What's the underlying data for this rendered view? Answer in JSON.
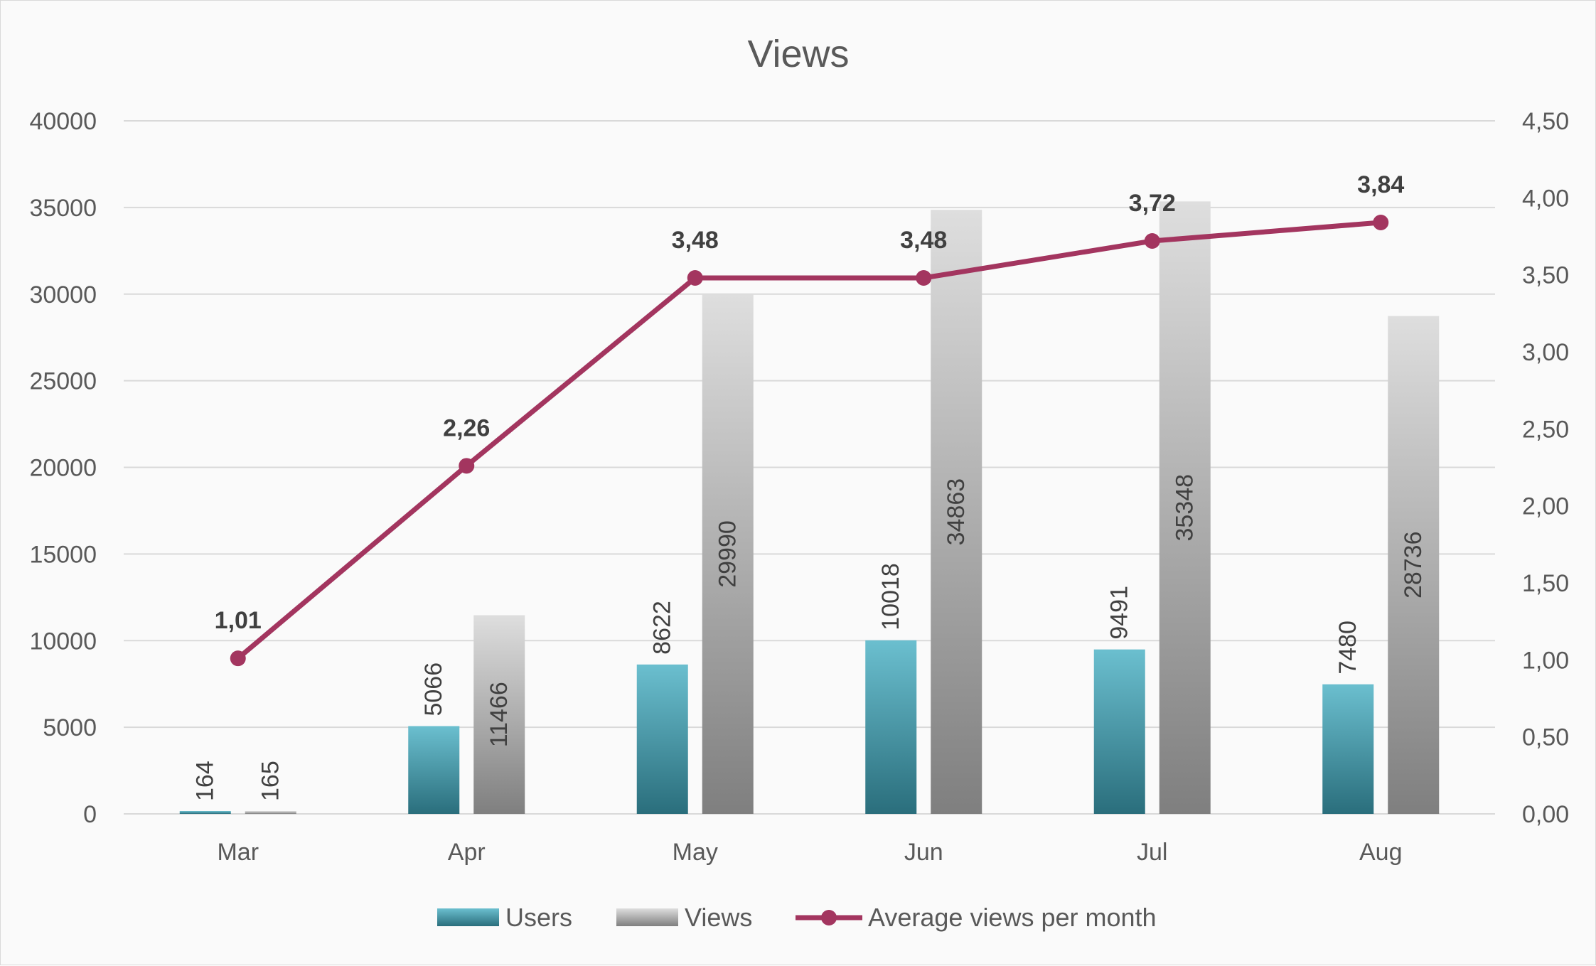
{
  "chart_data": {
    "type": "bar",
    "title": "Views",
    "categories": [
      "Mar",
      "Apr",
      "May",
      "Jun",
      "Jul",
      "Aug"
    ],
    "series": [
      {
        "name": "Users",
        "type": "bar",
        "axis": "left",
        "values": [
          164,
          5066,
          8622,
          10018,
          9491,
          7480
        ],
        "labels": [
          "164",
          "5066",
          "8622",
          "10018",
          "9491",
          "7480"
        ],
        "color_top": "#6bbfcf",
        "color_bottom": "#2a6e7c"
      },
      {
        "name": "Views",
        "type": "bar",
        "axis": "left",
        "values": [
          165,
          11466,
          29990,
          34863,
          35348,
          28736
        ],
        "labels": [
          "165",
          "11466",
          "29990",
          "34863",
          "35348",
          "28736"
        ],
        "color_top": "#dedede",
        "color_bottom": "#7f7f7f"
      },
      {
        "name": "Average views per month",
        "type": "line",
        "axis": "right",
        "values": [
          1.01,
          2.26,
          3.48,
          3.48,
          3.72,
          3.84
        ],
        "labels": [
          "1,01",
          "2,26",
          "3,48",
          "3,48",
          "3,72",
          "3,84"
        ],
        "color": "#a3355f"
      }
    ],
    "y_left": {
      "range": [
        0,
        40000
      ],
      "ticks": [
        0,
        5000,
        10000,
        15000,
        20000,
        25000,
        30000,
        35000,
        40000
      ],
      "tick_labels": [
        "0",
        "5000",
        "10000",
        "15000",
        "20000",
        "25000",
        "30000",
        "35000",
        "40000"
      ]
    },
    "y_right": {
      "range": [
        0,
        4.5
      ],
      "ticks": [
        0,
        0.5,
        1,
        1.5,
        2,
        2.5,
        3,
        3.5,
        4,
        4.5
      ],
      "tick_labels": [
        "0,00",
        "0,50",
        "1,00",
        "1,50",
        "2,00",
        "2,50",
        "3,00",
        "3,50",
        "4,00",
        "4,50"
      ]
    },
    "grid": true,
    "legend_position": "bottom",
    "colors": {
      "gridline": "#d9d9d9",
      "axis_text": "#595959",
      "label_text": "#404040"
    }
  }
}
